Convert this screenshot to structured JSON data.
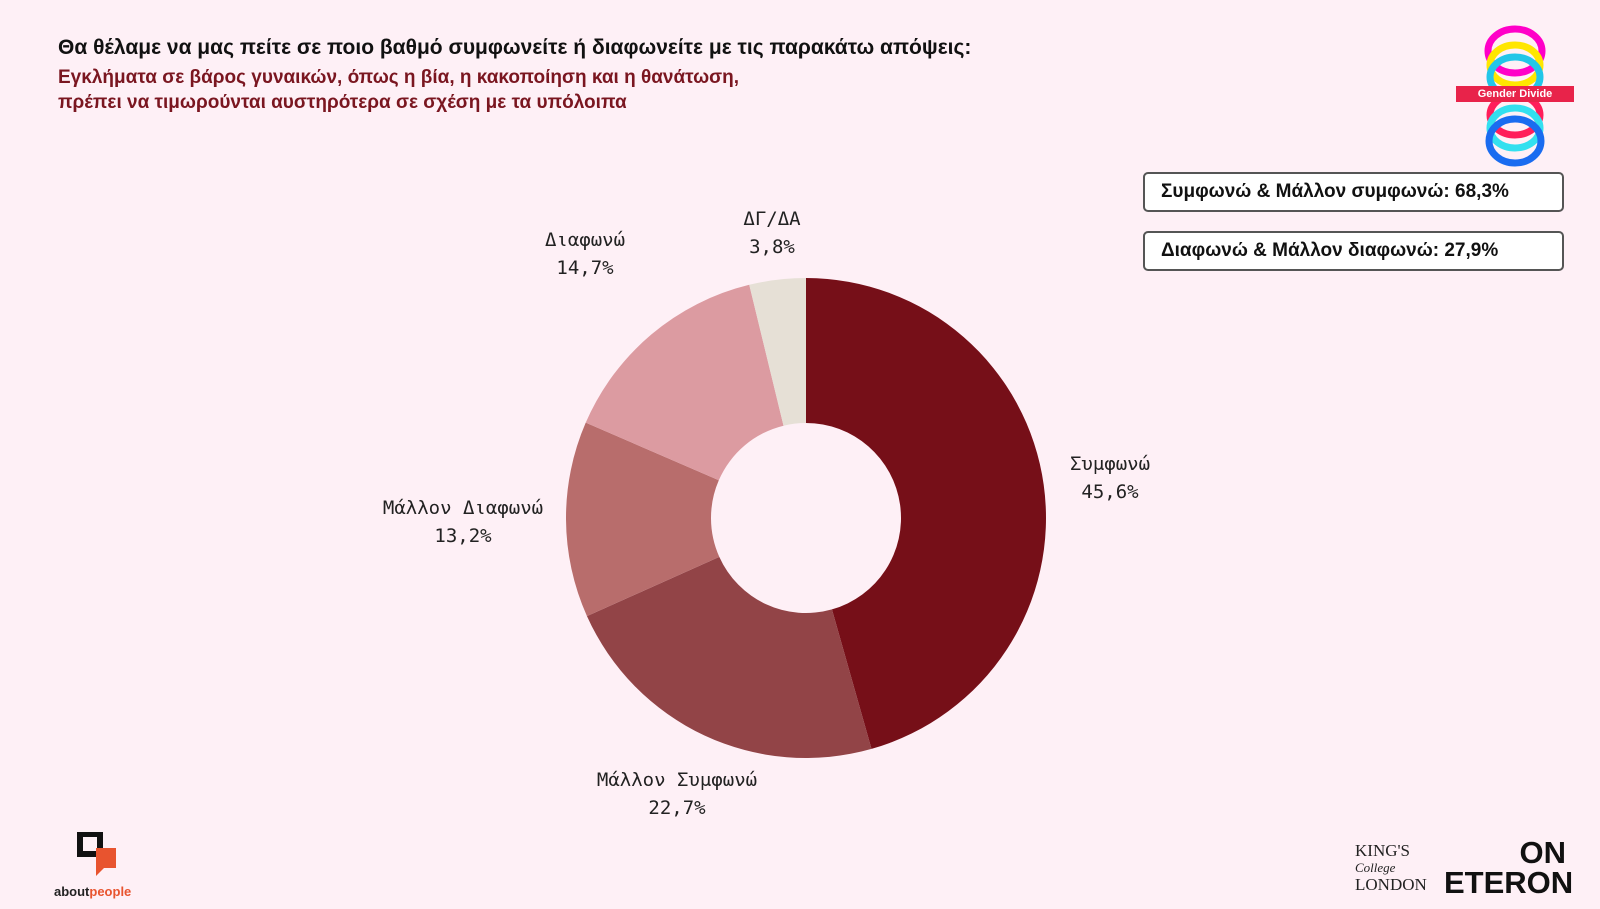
{
  "header": {
    "title": "Θα θέλαμε να μας πείτε σε ποιο βαθμό συμφωνείτε ή διαφωνείτε με τις παρακάτω απόψεις:",
    "subtitle_line1": "Εγκλήματα σε βάρος γυναικών, όπως η βία, η κακοποίηση και η θανάτωση,",
    "subtitle_line2": "πρέπει να τιμωρούνται αυστηρότερα σε σχέση με τα υπόλοιπα"
  },
  "summary": {
    "agree_total": "Συμφωνώ & Μάλλον συμφωνώ: 68,3%",
    "disagree_total": "Διαφωνώ & Μάλλον διαφωνώ: 27,9%"
  },
  "chart_data": {
    "type": "pie",
    "donut": true,
    "categories": [
      "Συμφωνώ",
      "Μάλλον Συμφωνώ",
      "Μάλλον Διαφωνώ",
      "Διαφωνώ",
      "ΔΓ/ΔΑ"
    ],
    "values": [
      45.6,
      22.7,
      13.2,
      14.7,
      3.8
    ],
    "value_labels": [
      "45,6%",
      "22,7%",
      "13,2%",
      "14,7%",
      "3,8%"
    ],
    "colors": [
      "#760f18",
      "#924447",
      "#b86d6c",
      "#dc9ba1",
      "#e6e0d6"
    ]
  },
  "logos": {
    "gender_divide": "Gender Divide",
    "aboutpeople_about": "about",
    "aboutpeople_people": "people",
    "kings_line1": "KING'S",
    "kings_line2": "College",
    "kings_line3": "LONDON",
    "eteron_line1": "ON",
    "eteron_line2": "ETERON"
  }
}
